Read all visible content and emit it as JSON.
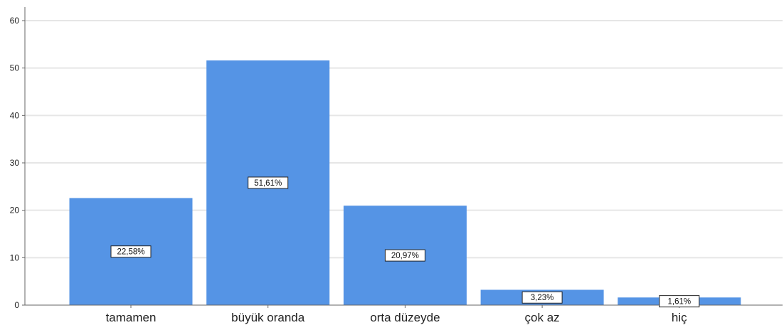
{
  "chart_data": {
    "type": "bar",
    "title": "",
    "xlabel": "",
    "ylabel": "",
    "categories": [
      "tamamen",
      "büyük oranda",
      "orta düzeyde",
      "çok az",
      "hiç"
    ],
    "values": [
      22.58,
      51.61,
      20.97,
      3.23,
      1.61
    ],
    "data_labels": [
      "22,58%",
      "51,61%",
      "20,97%",
      "3,23%",
      "1,61%"
    ],
    "ylim": [
      0,
      60
    ],
    "yticks": [
      0,
      10,
      20,
      30,
      40,
      50,
      60
    ],
    "ytick_labels": [
      "0",
      "10",
      "20",
      "30",
      "40",
      "50",
      "60"
    ],
    "grid": "horizontal",
    "bar_color": "#5594E5",
    "gridline_color": "#E6E6E6"
  }
}
